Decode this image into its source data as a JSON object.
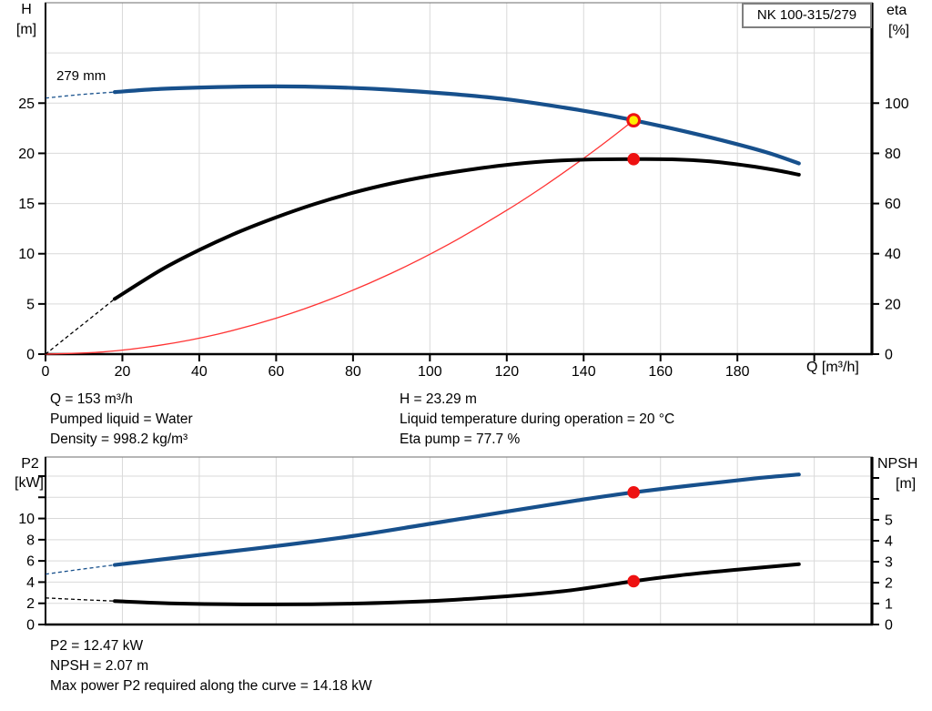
{
  "title_box": {
    "text": "NK 100-315/279"
  },
  "annotations": {
    "impeller": "279 mm"
  },
  "top_stats": {
    "q": "Q = 153 m³/h",
    "pumped_liquid": "Pumped liquid = Water",
    "density": "Density = 998.2 kg/m³",
    "h": "H = 23.29 m",
    "liquid_temp": "Liquid temperature during operation = 20 °C",
    "eta_pump": "Eta pump = 77.7 %"
  },
  "bottom_stats": {
    "p2": "P2 = 12.47 kW",
    "npsh": "NPSH = 2.07 m",
    "max_power": "Max power P2 required along the curve = 14.18 kW"
  },
  "colors": {
    "curve_blue": "#17508c",
    "curve_black": "#000000",
    "system_red": "#ff3333",
    "marker_red": "#ee1111",
    "duty_yellow": "#ffee00",
    "grid": "#d9d9d9",
    "axis": "#000000",
    "border_top": "#6e6e6e"
  },
  "chart_data": [
    {
      "id": "hq-chart",
      "type": "line",
      "title": "NK 100-315/279",
      "x_axis": {
        "label": "Q [m³/h]",
        "min": 0,
        "max": 215,
        "labeled_ticks": [
          0,
          20,
          40,
          60,
          80,
          100,
          120,
          140,
          160,
          180
        ],
        "tick_marks": [
          0,
          20,
          40,
          60,
          80,
          100,
          120,
          140,
          160,
          180,
          200
        ],
        "gridlines": [
          20,
          40,
          60,
          80,
          100,
          120,
          140,
          160,
          180,
          200
        ]
      },
      "y_left": {
        "name": "H",
        "unit": "[m]",
        "min": 0,
        "max": 35,
        "labeled_ticks": [
          0,
          5,
          10,
          15,
          20,
          25
        ],
        "extra_tick_marks": [],
        "gridlines": [
          5,
          10,
          15,
          20,
          25,
          30
        ]
      },
      "y_right": {
        "name": "eta",
        "unit": "[%]",
        "min": 0,
        "max": 140,
        "labeled_ticks": [
          0,
          20,
          40,
          60,
          80,
          100
        ],
        "extra_tick_marks": []
      },
      "series": [
        {
          "name": "system-curve",
          "axis": "left",
          "color_key": "system_red",
          "width": 1.3,
          "points": [
            [
              0,
              0
            ],
            [
              15,
              0.22
            ],
            [
              30,
              0.9
            ],
            [
              45,
              2.01
            ],
            [
              60,
              3.58
            ],
            [
              75,
              5.6
            ],
            [
              90,
              8.06
            ],
            [
              105,
              10.97
            ],
            [
              120,
              14.33
            ],
            [
              130,
              16.81
            ],
            [
              140,
              19.5
            ],
            [
              147,
              21.5
            ],
            [
              153,
              23.29
            ]
          ]
        },
        {
          "name": "efficiency-curve",
          "axis": "right",
          "color_key": "curve_black",
          "width": 4,
          "dash_lead": [
            [
              0,
              0
            ],
            [
              9,
              11
            ],
            [
              18,
              22
            ]
          ],
          "points": [
            [
              18,
              22
            ],
            [
              30,
              33.5
            ],
            [
              40,
              41.5
            ],
            [
              50,
              48.5
            ],
            [
              60,
              54.5
            ],
            [
              70,
              59.8
            ],
            [
              80,
              64.3
            ],
            [
              90,
              68
            ],
            [
              100,
              71
            ],
            [
              110,
              73.4
            ],
            [
              120,
              75.4
            ],
            [
              130,
              76.8
            ],
            [
              140,
              77.5
            ],
            [
              153,
              77.7
            ],
            [
              163,
              77.6
            ],
            [
              173,
              76.8
            ],
            [
              183,
              75.0
            ],
            [
              190,
              73.3
            ],
            [
              196,
              71.5
            ]
          ]
        },
        {
          "name": "head-curve-279mm",
          "axis": "left",
          "color_key": "curve_blue",
          "width": 4.2,
          "dash_lead": [
            [
              0,
              25.5
            ],
            [
              9,
              25.85
            ],
            [
              18,
              26.1
            ]
          ],
          "points": [
            [
              18,
              26.1
            ],
            [
              30,
              26.42
            ],
            [
              45,
              26.6
            ],
            [
              60,
              26.67
            ],
            [
              75,
              26.58
            ],
            [
              90,
              26.33
            ],
            [
              105,
              25.93
            ],
            [
              120,
              25.38
            ],
            [
              135,
              24.55
            ],
            [
              145,
              23.9
            ],
            [
              153,
              23.29
            ],
            [
              165,
              22.3
            ],
            [
              178,
              21.1
            ],
            [
              188,
              20.05
            ],
            [
              196,
              19.0
            ]
          ]
        }
      ],
      "markers": [
        {
          "name": "eta-point",
          "x": 153,
          "y": 77.7,
          "axis": "right",
          "style": "dot"
        },
        {
          "name": "duty-point",
          "x": 153,
          "y": 23.29,
          "axis": "left",
          "style": "duty"
        }
      ]
    },
    {
      "id": "p2-npsh-chart",
      "type": "line",
      "x_axis": {
        "label": "",
        "min": 0,
        "max": 215,
        "labeled_ticks": [],
        "tick_marks": [],
        "gridlines": [
          20,
          40,
          60,
          80,
          100,
          120,
          140,
          160,
          180,
          200
        ]
      },
      "y_left": {
        "name": "P2",
        "unit": "[kW]",
        "min": 0,
        "max": 15.8,
        "labeled_ticks": [
          0,
          2,
          4,
          6,
          8,
          10
        ],
        "extra_tick_marks": [
          12,
          14
        ],
        "gridlines": [
          2,
          4,
          6,
          8,
          10,
          12,
          14
        ]
      },
      "y_right": {
        "name": "NPSH",
        "unit": "[m]",
        "min": 0,
        "max": 8.0,
        "labeled_ticks": [
          0,
          1,
          2,
          3,
          4,
          5
        ],
        "extra_tick_marks": [
          6,
          7
        ]
      },
      "series": [
        {
          "name": "p2-curve",
          "axis": "left",
          "color_key": "curve_blue",
          "width": 4.2,
          "dash_lead": [
            [
              0,
              4.75
            ],
            [
              9,
              5.2
            ],
            [
              18,
              5.62
            ]
          ],
          "points": [
            [
              18,
              5.62
            ],
            [
              40,
              6.55
            ],
            [
              60,
              7.4
            ],
            [
              80,
              8.35
            ],
            [
              100,
              9.5
            ],
            [
              120,
              10.65
            ],
            [
              140,
              11.8
            ],
            [
              153,
              12.47
            ],
            [
              170,
              13.2
            ],
            [
              185,
              13.8
            ],
            [
              196,
              14.15
            ]
          ]
        },
        {
          "name": "npsh-curve",
          "axis": "right",
          "color_key": "curve_black",
          "width": 4,
          "dash_lead": [
            [
              0,
              1.27
            ],
            [
              9,
              1.19
            ],
            [
              18,
              1.12
            ]
          ],
          "points": [
            [
              18,
              1.12
            ],
            [
              35,
              1.0
            ],
            [
              60,
              0.96
            ],
            [
              80,
              1.0
            ],
            [
              100,
              1.12
            ],
            [
              120,
              1.35
            ],
            [
              135,
              1.6
            ],
            [
              145,
              1.85
            ],
            [
              153,
              2.07
            ],
            [
              165,
              2.35
            ],
            [
              180,
              2.62
            ],
            [
              196,
              2.88
            ]
          ]
        }
      ],
      "markers": [
        {
          "name": "p2-point",
          "x": 153,
          "y": 12.47,
          "axis": "left",
          "style": "dot"
        },
        {
          "name": "npsh-point",
          "x": 153,
          "y": 2.07,
          "axis": "right",
          "style": "dot"
        }
      ]
    }
  ]
}
